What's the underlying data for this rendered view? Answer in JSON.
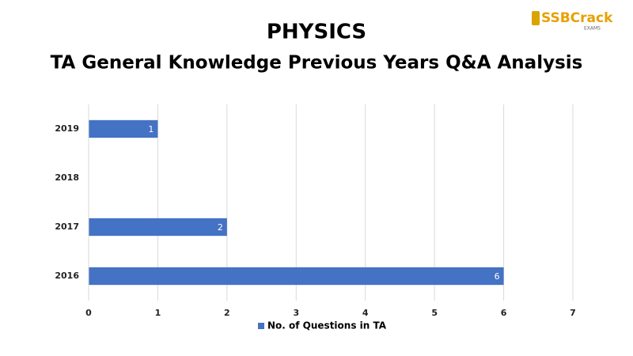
{
  "logo": {
    "text": "SSBCrack",
    "sub": "EXAMS"
  },
  "chart_data": {
    "type": "bar",
    "orientation": "horizontal",
    "title": "PHYSICS",
    "subtitle": "TA General Knowledge Previous Years Q&A Analysis",
    "categories": [
      "2016",
      "2017",
      "2018",
      "2019"
    ],
    "series": [
      {
        "name": "No. of Questions in TA",
        "color": "#4472c4",
        "values": [
          6,
          2,
          null,
          1
        ]
      }
    ],
    "xlim": [
      0,
      7
    ],
    "xticks": [
      0,
      1,
      2,
      3,
      4,
      5,
      6,
      7
    ],
    "grid": true,
    "legend": "bottom"
  }
}
